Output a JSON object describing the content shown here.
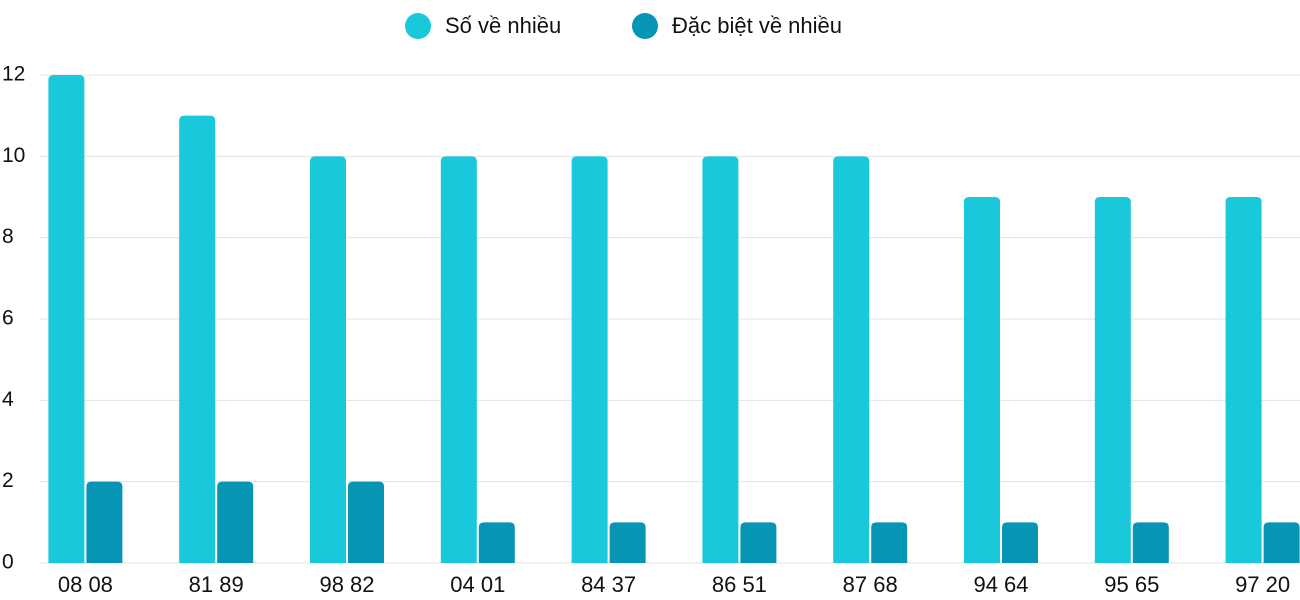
{
  "chart_data": {
    "type": "bar",
    "categories": [
      "08 08",
      "81 89",
      "98 82",
      "04 01",
      "84 37",
      "86 51",
      "87 68",
      "94 64",
      "95 65",
      "97 20"
    ],
    "series": [
      {
        "name": "Số về nhiều",
        "color": "#1ac8db",
        "values": [
          12,
          11,
          10,
          10,
          10,
          10,
          10,
          9,
          9,
          9
        ]
      },
      {
        "name": "Đặc biệt về nhiều",
        "color": "#0795b6",
        "values": [
          2,
          2,
          2,
          1,
          1,
          1,
          1,
          1,
          1,
          1
        ]
      }
    ],
    "ylim": [
      0,
      12
    ],
    "yticks": [
      0,
      2,
      4,
      6,
      8,
      10,
      12
    ],
    "grid": true,
    "legend": "top"
  }
}
